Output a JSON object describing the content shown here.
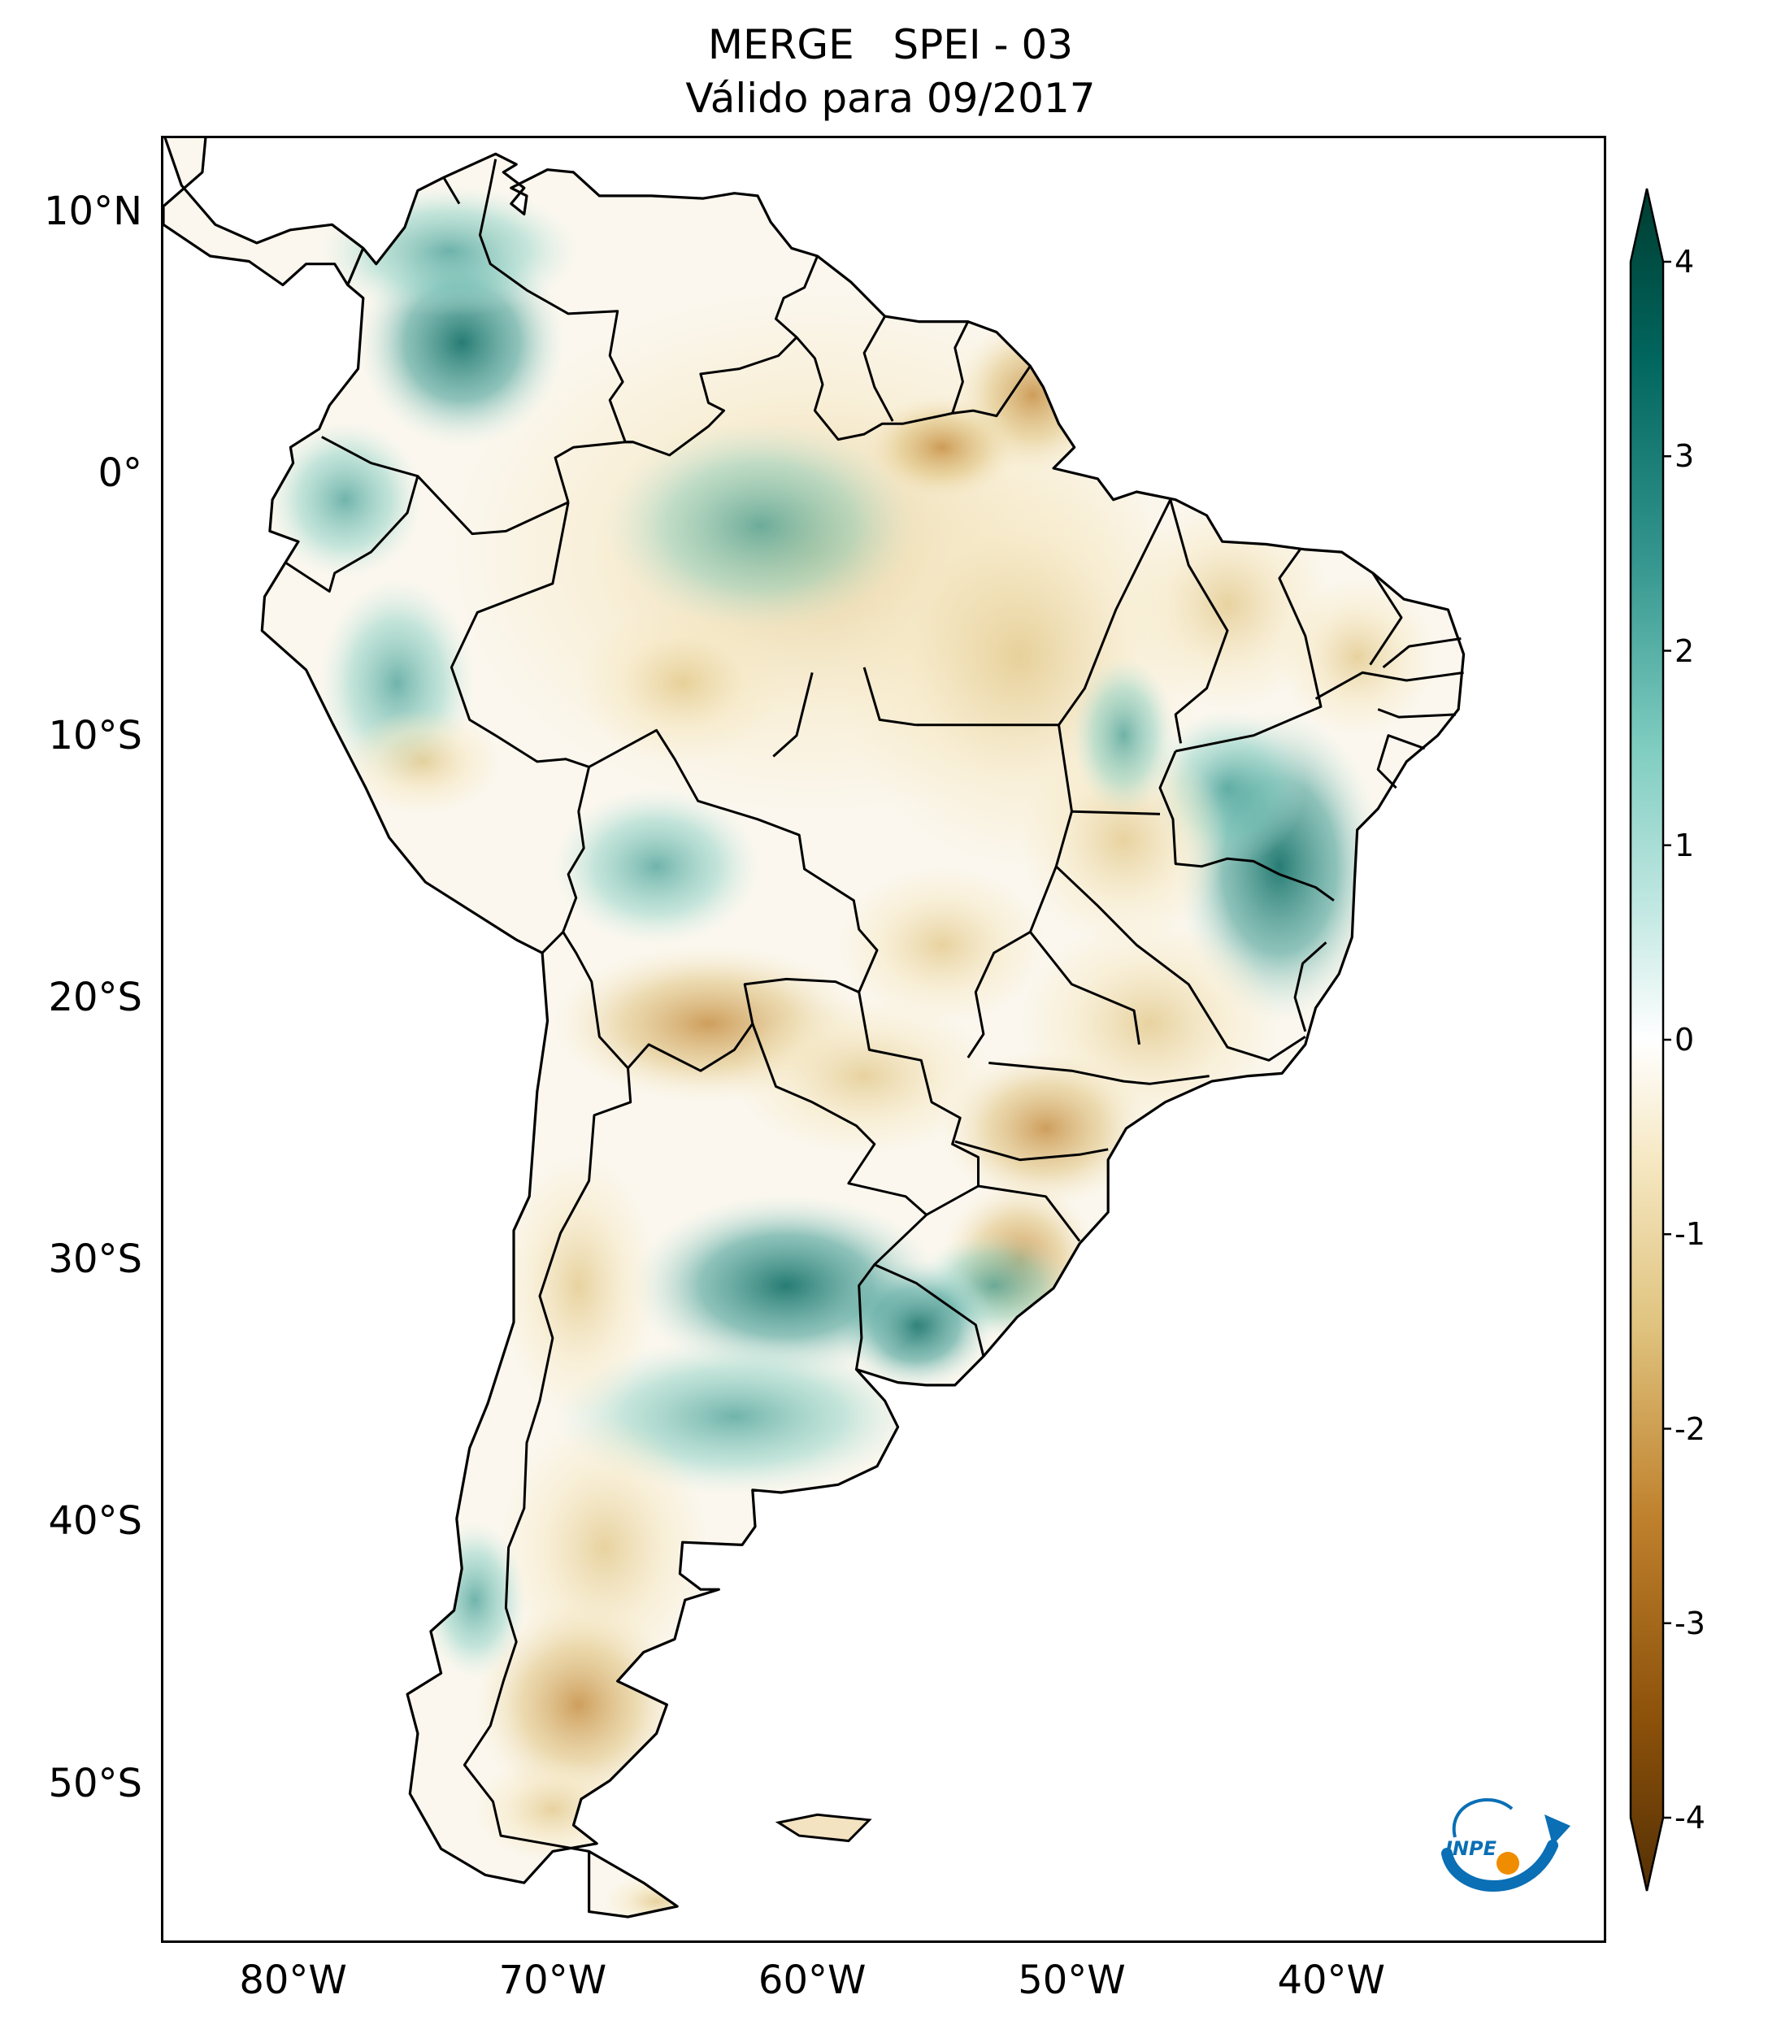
{
  "title": {
    "line1": "MERGE   SPEI - 03",
    "line2": "Válido para 09/2017"
  },
  "axes": {
    "lat_labels": [
      "10°N",
      "0°",
      "10°S",
      "20°S",
      "30°S",
      "40°S",
      "50°S"
    ],
    "lat_values": [
      10,
      0,
      -10,
      -20,
      -30,
      -40,
      -50
    ],
    "lon_labels": [
      "80°W",
      "70°W",
      "60°W",
      "50°W",
      "40°W"
    ],
    "lon_values": [
      -80,
      -70,
      -60,
      -50,
      -40
    ],
    "lon_range": [
      -85,
      -29.5
    ],
    "lat_range": [
      12.8,
      -56
    ]
  },
  "colorbar": {
    "labels": [
      "4",
      "3",
      "2",
      "1",
      "0",
      "-1",
      "-2",
      "-3",
      "-4"
    ],
    "values": [
      4,
      3,
      2,
      1,
      0,
      -1,
      -2,
      -3,
      -4
    ],
    "range": [
      -4,
      4
    ],
    "extend": "both",
    "colormap": "BrBG",
    "colors": [
      "#543005",
      "#8c510a",
      "#bf812d",
      "#dfc27d",
      "#f6e8c3",
      "#ffffff",
      "#c7eae5",
      "#80cdc1",
      "#35978f",
      "#01665e",
      "#003c30"
    ]
  },
  "map": {
    "region": "South America",
    "variable": "SPEI-03",
    "notable_anomalies": [
      {
        "name": "wet-uruguay-pampas",
        "lon": -58,
        "lat": -33,
        "spei": 2.2
      },
      {
        "name": "wet-east-brazil",
        "lon": -43,
        "lat": -15,
        "spei": 2.4
      },
      {
        "name": "wet-colombia",
        "lon": -73,
        "lat": 5,
        "spei": 2.2
      },
      {
        "name": "dry-amapa",
        "lon": -52,
        "lat": 3,
        "spei": -2.2
      },
      {
        "name": "dry-patagonia",
        "lon": -69,
        "lat": -47,
        "spei": -1.3
      }
    ]
  },
  "logo": {
    "text": "INPE",
    "colors": [
      "#0a6fb5",
      "#f08c00"
    ]
  }
}
